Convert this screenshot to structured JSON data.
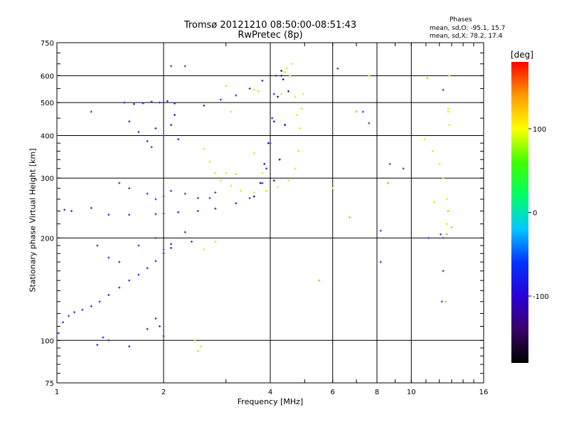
{
  "chart_data": {
    "type": "scatter",
    "title": "Tromsø 20121210 08:50:00-08:51:43",
    "subtitle": "RwPretec (8p)",
    "xlabel": "Frequency [MHz]",
    "ylabel": "Stationary phase Virtual Height [km]",
    "x_scale": "log",
    "y_scale": "log",
    "xlim": [
      1,
      16
    ],
    "ylim": [
      75,
      750
    ],
    "x_ticks": [
      1,
      2,
      4,
      6,
      8,
      10,
      16
    ],
    "y_ticks": [
      75,
      100,
      200,
      300,
      400,
      500,
      600,
      750
    ],
    "grid": true,
    "stats": {
      "heading": "Phases",
      "line1": "mean, sd,O: -95.1, 15.7",
      "line2": "mean, sd,X:  78.2, 17.4"
    },
    "colorbar": {
      "label": "[deg]",
      "ticks": [
        100,
        0,
        -100
      ],
      "range": [
        -180,
        180
      ],
      "colors": [
        "#000000",
        "#3a006a",
        "#2a00d8",
        "#0033ff",
        "#00c8ff",
        "#00ff66",
        "#40ff00",
        "#ffff00",
        "#ff9900",
        "#ff0000"
      ]
    },
    "series": [
      {
        "mode": "O",
        "color": "#2233dd",
        "points": [
          [
            1.01,
            105
          ],
          [
            1.04,
            113
          ],
          [
            1.08,
            118
          ],
          [
            1.12,
            121
          ],
          [
            1.18,
            123
          ],
          [
            1.25,
            126
          ],
          [
            1.32,
            130
          ],
          [
            1.4,
            136
          ],
          [
            1.5,
            143
          ],
          [
            1.6,
            150
          ],
          [
            1.7,
            156
          ],
          [
            1.8,
            163
          ],
          [
            1.9,
            171
          ],
          [
            2.0,
            180
          ],
          [
            2.1,
            187
          ]
        ]
      },
      {
        "mode": "O",
        "color": "#2233dd",
        "points": [
          [
            1.05,
            242
          ],
          [
            1.1,
            240
          ],
          [
            1.25,
            245
          ],
          [
            1.4,
            234
          ],
          [
            1.6,
            234
          ],
          [
            1.9,
            235
          ],
          [
            2.0,
            236
          ],
          [
            2.2,
            238
          ],
          [
            2.5,
            240
          ],
          [
            2.8,
            244
          ],
          [
            3.2,
            253
          ],
          [
            3.5,
            262
          ],
          [
            3.8,
            290
          ],
          [
            3.9,
            320
          ],
          [
            4.0,
            380
          ],
          [
            4.05,
            450
          ],
          [
            4.1,
            530
          ],
          [
            4.15,
            600
          ]
        ]
      },
      {
        "mode": "O",
        "color": "#2233dd",
        "points": [
          [
            1.55,
            500
          ],
          [
            1.65,
            495
          ],
          [
            1.75,
            498
          ],
          [
            1.85,
            503
          ],
          [
            1.95,
            500
          ],
          [
            2.05,
            505
          ],
          [
            2.15,
            497
          ],
          [
            2.6,
            490
          ],
          [
            2.9,
            510
          ],
          [
            3.2,
            525
          ],
          [
            3.5,
            550
          ],
          [
            3.8,
            580
          ]
        ]
      },
      {
        "mode": "O",
        "color": "#1a30e0",
        "points": [
          [
            1.6,
            440
          ],
          [
            1.7,
            410
          ],
          [
            1.8,
            385
          ],
          [
            1.9,
            420
          ],
          [
            2.0,
            400
          ],
          [
            2.1,
            430
          ],
          [
            2.15,
            460
          ],
          [
            2.2,
            390
          ]
        ]
      },
      {
        "mode": "O",
        "color": "#2a3ae0",
        "points": [
          [
            1.5,
            290
          ],
          [
            1.6,
            280
          ],
          [
            1.8,
            270
          ],
          [
            1.9,
            260
          ],
          [
            2.0,
            265
          ],
          [
            2.1,
            275
          ],
          [
            2.3,
            270
          ],
          [
            2.5,
            262
          ],
          [
            2.7,
            262
          ],
          [
            2.8,
            272
          ],
          [
            1.3,
            190
          ],
          [
            1.4,
            175
          ],
          [
            1.5,
            170
          ],
          [
            1.7,
            190
          ],
          [
            1.9,
            200
          ],
          [
            2.0,
            185
          ],
          [
            2.1,
            192
          ],
          [
            2.3,
            208
          ],
          [
            2.4,
            195
          ]
        ]
      },
      {
        "mode": "X",
        "color": "#c8f020",
        "points": [
          [
            2.6,
            365
          ],
          [
            2.7,
            335
          ],
          [
            2.8,
            310
          ],
          [
            2.9,
            295
          ],
          [
            3.1,
            285
          ],
          [
            3.3,
            275
          ],
          [
            3.6,
            272
          ],
          [
            3.9,
            275
          ],
          [
            4.2,
            282
          ],
          [
            4.5,
            295
          ],
          [
            4.7,
            320
          ],
          [
            4.8,
            360
          ],
          [
            4.85,
            420
          ],
          [
            4.9,
            480
          ],
          [
            4.95,
            530
          ]
        ]
      },
      {
        "mode": "X",
        "color": "#c8f020",
        "points": [
          [
            3.0,
            560
          ],
          [
            3.1,
            470
          ],
          [
            3.6,
            545
          ],
          [
            3.7,
            540
          ],
          [
            2.6,
            185
          ],
          [
            2.8,
            195
          ]
        ]
      },
      {
        "mode": "X",
        "color": "#c8f020",
        "points": [
          [
            3.0,
            310
          ],
          [
            3.2,
            308
          ],
          [
            3.6,
            355
          ],
          [
            3.8,
            310
          ]
        ]
      },
      {
        "mode": "O",
        "color": "#3a0090",
        "points": [
          [
            3.6,
            265
          ],
          [
            3.75,
            290
          ],
          [
            3.85,
            330
          ],
          [
            3.95,
            380
          ],
          [
            4.1,
            440
          ],
          [
            4.2,
            520
          ],
          [
            4.3,
            600
          ],
          [
            4.3,
            620
          ],
          [
            4.35,
            585
          ],
          [
            4.5,
            540
          ],
          [
            4.4,
            430
          ],
          [
            4.25,
            340
          ],
          [
            4.1,
            295
          ]
        ]
      },
      {
        "mode": "X",
        "color": "#c8f020",
        "points": [
          [
            4.45,
            630
          ],
          [
            4.55,
            600
          ],
          [
            4.6,
            650
          ],
          [
            4.7,
            520
          ],
          [
            4.75,
            460
          ]
        ]
      },
      {
        "mode": "noise",
        "color": "#3344dd",
        "points": [
          [
            1.25,
            470
          ],
          [
            1.85,
            370
          ],
          [
            2.1,
            640
          ],
          [
            2.3,
            640
          ],
          [
            6.2,
            630
          ],
          [
            7.3,
            470
          ],
          [
            7.6,
            435
          ],
          [
            8.7,
            330
          ],
          [
            9.5,
            320
          ],
          [
            8.2,
            210
          ],
          [
            8.2,
            170
          ],
          [
            11.2,
            200
          ],
          [
            12.3,
            160
          ],
          [
            12.2,
            130
          ],
          [
            12.3,
            200
          ],
          [
            12.1,
            205
          ],
          [
            12.3,
            545
          ]
        ]
      },
      {
        "mode": "noise",
        "color": "#ffaa00",
        "points": [
          [
            5.5,
            150
          ],
          [
            6.7,
            230
          ],
          [
            7.0,
            470
          ],
          [
            8.6,
            290
          ],
          [
            11.1,
            590
          ],
          [
            12.7,
            240
          ],
          [
            12.5,
            130
          ],
          [
            12.6,
            205
          ],
          [
            13.0,
            215
          ]
        ]
      },
      {
        "mode": "noise",
        "color": "#e0f000",
        "points": [
          [
            12.8,
            600
          ],
          [
            12.7,
            470
          ],
          [
            12.3,
            300
          ],
          [
            12.6,
            260
          ],
          [
            12.8,
            430
          ],
          [
            12.7,
            480
          ],
          [
            10.9,
            390
          ],
          [
            11.5,
            360
          ],
          [
            12.0,
            330
          ],
          [
            12.6,
            220
          ],
          [
            11.6,
            255
          ],
          [
            6.0,
            280
          ],
          [
            7.6,
            600
          ]
        ]
      },
      {
        "mode": "noise",
        "color": "#2233dd",
        "points": [
          [
            1.3,
            97
          ],
          [
            1.35,
            102
          ],
          [
            1.4,
            100
          ],
          [
            1.6,
            96
          ],
          [
            1.8,
            108
          ],
          [
            1.9,
            116
          ],
          [
            2.0,
            103
          ],
          [
            1.95,
            110
          ]
        ]
      },
      {
        "mode": "noise",
        "color": "#d0e020",
        "points": [
          [
            2.45,
            100
          ],
          [
            2.5,
            93
          ],
          [
            2.55,
            96
          ],
          [
            4.4,
            615
          ],
          [
            4.3,
            530
          ]
        ]
      }
    ]
  }
}
